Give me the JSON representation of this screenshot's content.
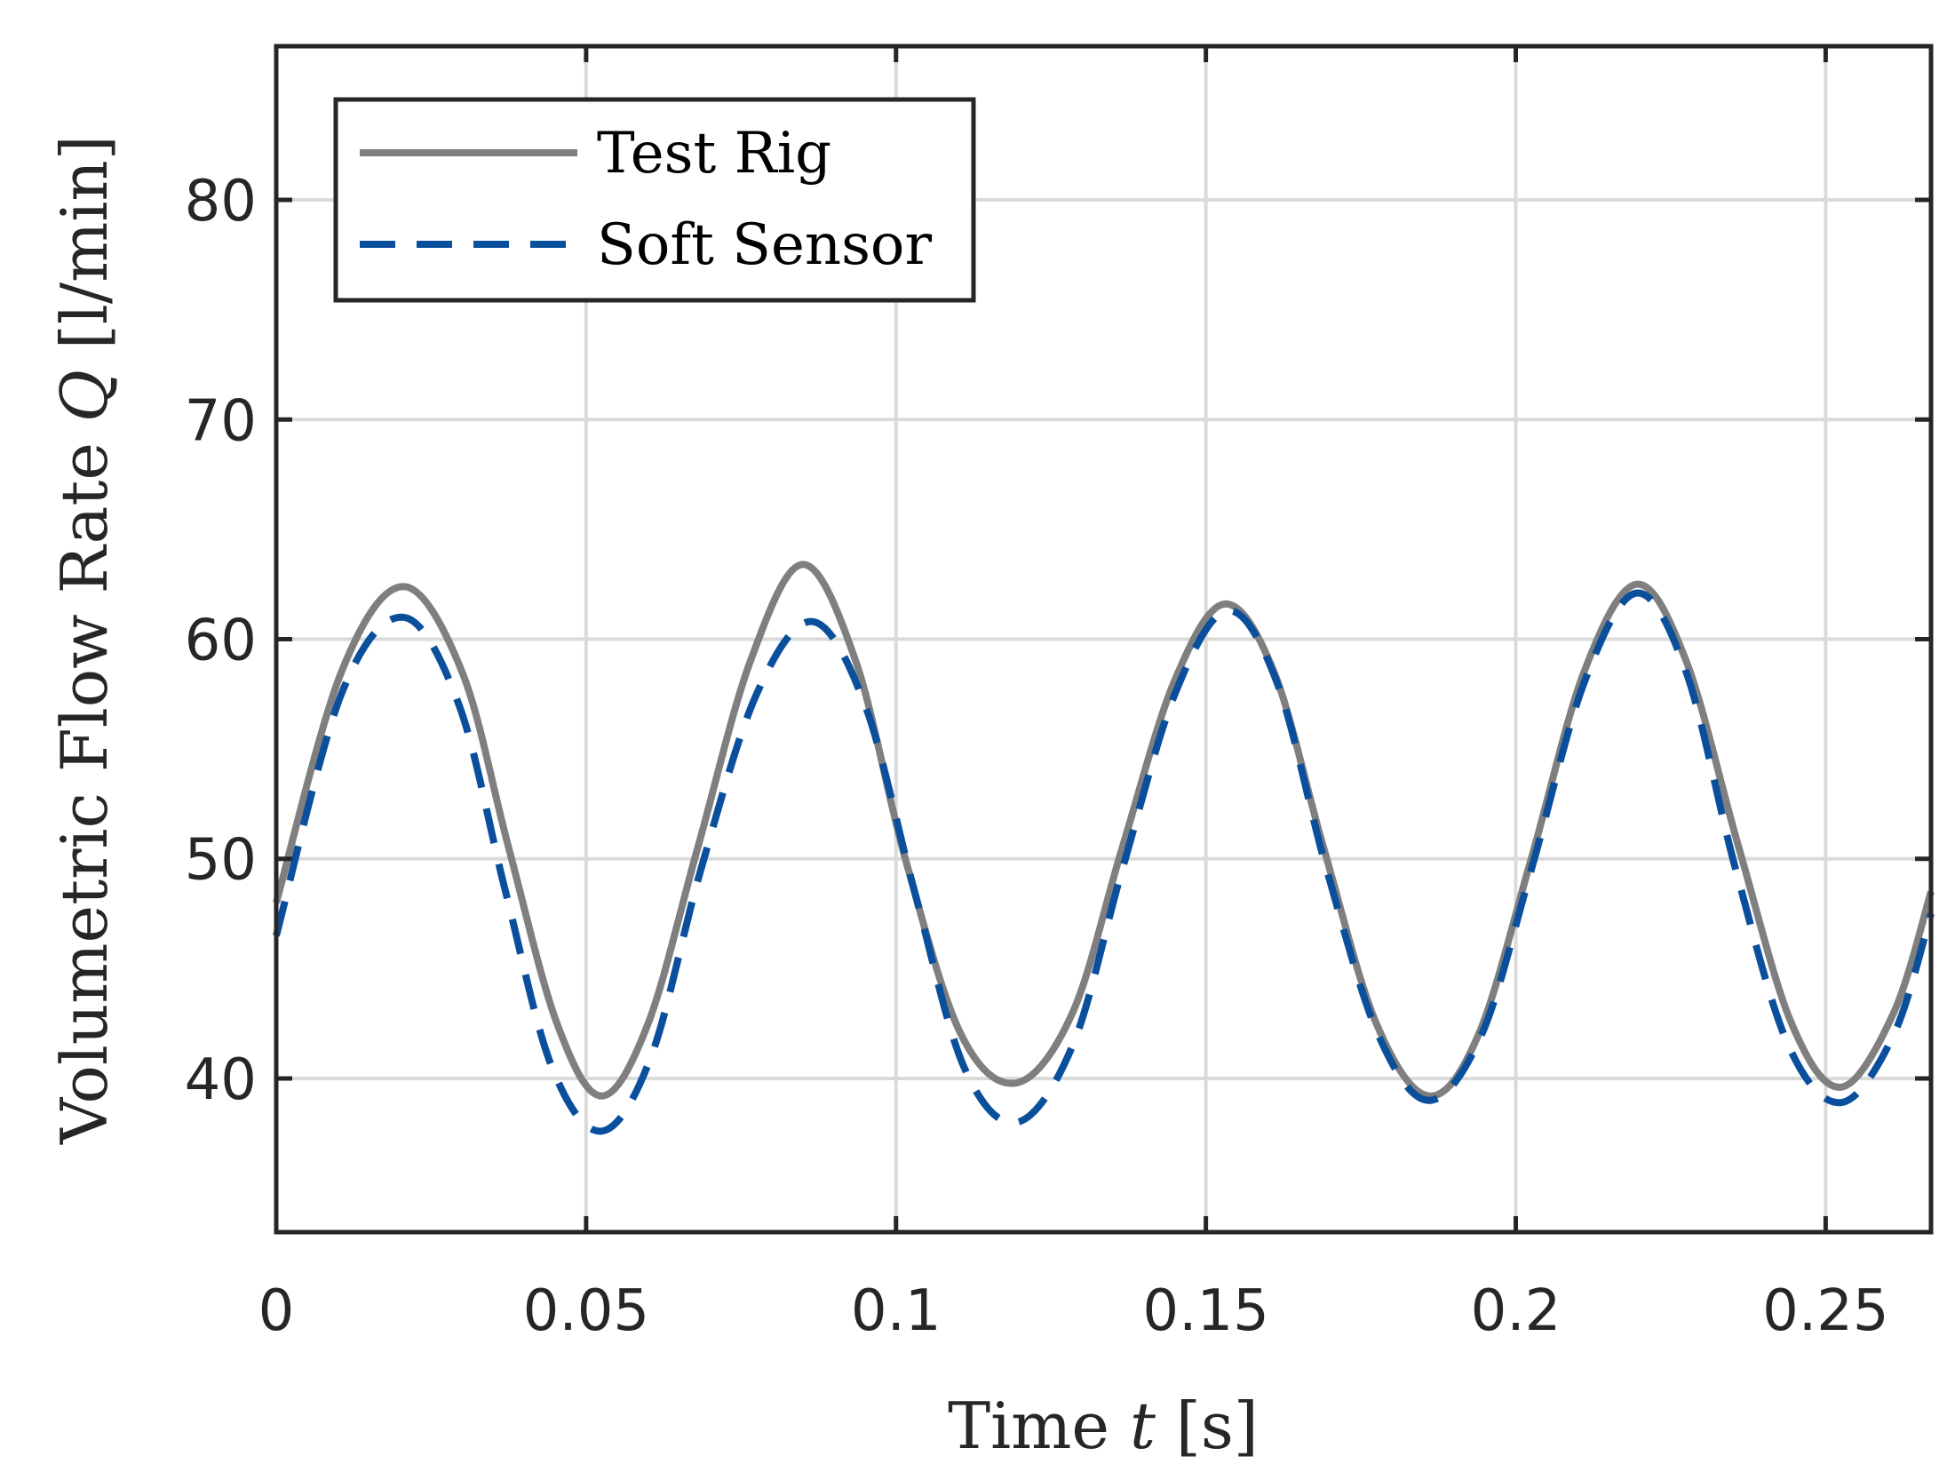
{
  "chart_data": {
    "type": "line",
    "xlabel": "Time t [s]",
    "xlabel_parts": {
      "prefix": "Time ",
      "variable": "t",
      "suffix": " [s]"
    },
    "ylabel": "Volumetric Flow Rate Q [l/min]",
    "ylabel_parts": {
      "prefix": "Volumetric Flow Rate ",
      "variable": "Q",
      "suffix": " [l/min]"
    },
    "xlim": [
      0,
      0.267
    ],
    "ylim": [
      33,
      87
    ],
    "xticks": [
      0,
      0.05,
      0.1,
      0.15,
      0.2,
      0.25
    ],
    "xtick_labels": [
      "0",
      "0.05",
      "0.1",
      "0.15",
      "0.2",
      "0.25"
    ],
    "yticks": [
      40,
      50,
      60,
      70,
      80
    ],
    "ytick_labels": [
      "40",
      "50",
      "60",
      "70",
      "80"
    ],
    "grid": true,
    "legend_position": "top-left",
    "series": [
      {
        "name": "Test Rig",
        "color": "#7f7f7f",
        "style": "solid",
        "points": [
          [
            0.0,
            48.0
          ],
          [
            0.0105,
            58.5
          ],
          [
            0.0205,
            62.4
          ],
          [
            0.03,
            58.5
          ],
          [
            0.0375,
            50.5
          ],
          [
            0.0453,
            42.5
          ],
          [
            0.0525,
            39.2
          ],
          [
            0.06,
            42.5
          ],
          [
            0.068,
            50.5
          ],
          [
            0.0765,
            59.0
          ],
          [
            0.085,
            63.4
          ],
          [
            0.0935,
            59.0
          ],
          [
            0.1015,
            50.0
          ],
          [
            0.1105,
            42.0
          ],
          [
            0.1195,
            39.8
          ],
          [
            0.1285,
            43.0
          ],
          [
            0.1365,
            50.5
          ],
          [
            0.1448,
            58.0
          ],
          [
            0.153,
            61.6
          ],
          [
            0.161,
            58.5
          ],
          [
            0.169,
            50.5
          ],
          [
            0.1775,
            42.5
          ],
          [
            0.186,
            39.2
          ],
          [
            0.194,
            42.0
          ],
          [
            0.2025,
            50.0
          ],
          [
            0.211,
            58.5
          ],
          [
            0.2195,
            62.5
          ],
          [
            0.2275,
            59.0
          ],
          [
            0.236,
            50.5
          ],
          [
            0.2445,
            42.5
          ],
          [
            0.2525,
            39.6
          ],
          [
            0.261,
            43.0
          ],
          [
            0.267,
            48.5
          ]
        ]
      },
      {
        "name": "Soft Sensor",
        "color": "#0a4f9c",
        "style": "dashed",
        "points": [
          [
            0.0,
            46.5
          ],
          [
            0.0105,
            57.5
          ],
          [
            0.0205,
            61.0
          ],
          [
            0.0295,
            57.0
          ],
          [
            0.037,
            48.5
          ],
          [
            0.0445,
            40.5
          ],
          [
            0.0525,
            37.6
          ],
          [
            0.0605,
            41.0
          ],
          [
            0.0685,
            49.5
          ],
          [
            0.0775,
            57.5
          ],
          [
            0.0865,
            60.8
          ],
          [
            0.095,
            57.0
          ],
          [
            0.103,
            48.5
          ],
          [
            0.111,
            40.5
          ],
          [
            0.1195,
            38.0
          ],
          [
            0.1285,
            41.5
          ],
          [
            0.1365,
            49.5
          ],
          [
            0.145,
            57.5
          ],
          [
            0.1535,
            61.3
          ],
          [
            0.1615,
            58.0
          ],
          [
            0.1695,
            49.5
          ],
          [
            0.1778,
            42.0
          ],
          [
            0.186,
            39.0
          ],
          [
            0.1945,
            42.0
          ],
          [
            0.2025,
            49.5
          ],
          [
            0.211,
            58.0
          ],
          [
            0.2195,
            62.1
          ],
          [
            0.2275,
            58.5
          ],
          [
            0.2355,
            49.5
          ],
          [
            0.244,
            41.5
          ],
          [
            0.2525,
            38.9
          ],
          [
            0.261,
            42.0
          ],
          [
            0.267,
            47.5
          ]
        ]
      }
    ]
  }
}
